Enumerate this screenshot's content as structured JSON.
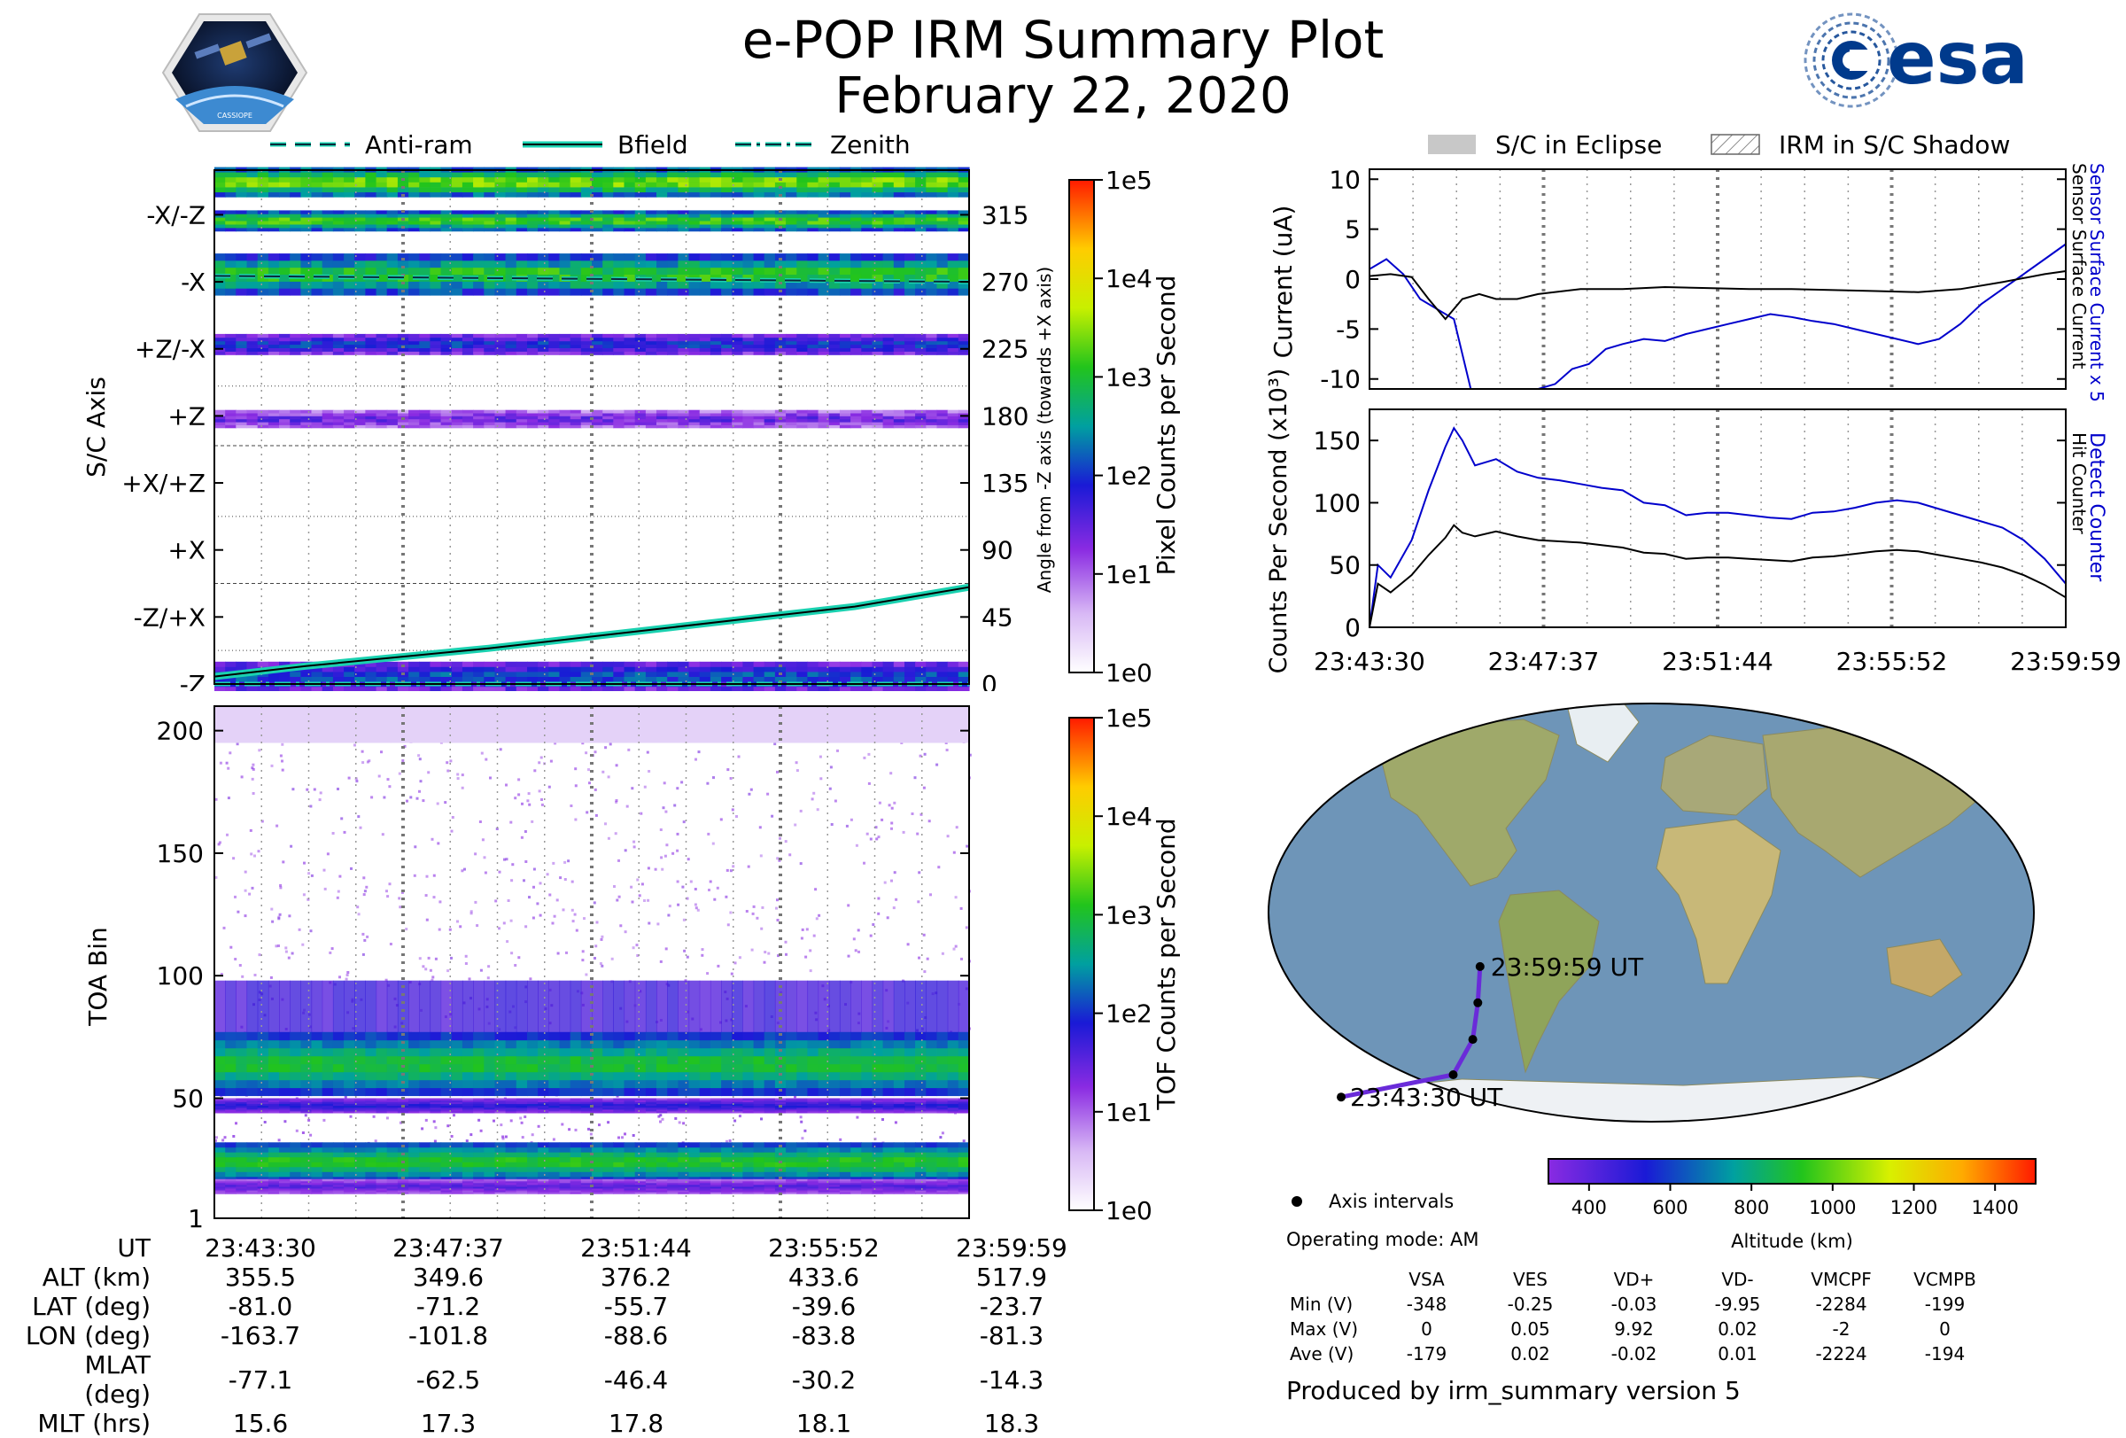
{
  "header": {
    "title": "e-POP IRM Summary Plot",
    "date": "February 22, 2020",
    "mission_logo_text": "CASSIOPE",
    "agency_logo_text": "esa"
  },
  "colors": {
    "sensor_blue": "#0000cc",
    "orbit_track": "#6a2bd9",
    "bfield_teal": "#1ad1b0",
    "eclipse_gray": "#c8c8c8"
  },
  "chart_data": [
    {
      "id": "pixel_spectrogram",
      "type": "heatmap",
      "ylabel": "S/C Axis",
      "y_ticks_left": [
        "-X/-Z",
        "-X",
        "+Z/-X",
        "+Z",
        "+X/+Z",
        "+X",
        "-Z/+X",
        "-Z"
      ],
      "y_ticks_right": [
        "315",
        "270",
        "225",
        "180",
        "135",
        "90",
        "45",
        "0"
      ],
      "right_axis_label": "Angle from -Z axis (towards +X axis)",
      "ylim": [
        0,
        345
      ],
      "legend": [
        "Anti-ram",
        "Bfield",
        "Zenith"
      ],
      "colorbar_label": "Pixel Counts per Second",
      "colorbar_ticks": [
        "1e5",
        "1e4",
        "1e3",
        "1e2",
        "1e1",
        "1e0"
      ],
      "bands": [
        {
          "center": 337,
          "half_width": 10,
          "intensity": 0.72
        },
        {
          "center": 311,
          "half_width": 7,
          "intensity": 0.68
        },
        {
          "center": 275,
          "half_width": 14,
          "intensity": 0.65
        },
        {
          "center": 228,
          "half_width": 7,
          "intensity": 0.42
        },
        {
          "center": 178,
          "half_width": 6,
          "intensity": 0.3
        },
        {
          "center": 5,
          "half_width": 10,
          "intensity": 0.45
        }
      ],
      "anti_ram": {
        "t": [
          0,
          16.5
        ],
        "angle": [
          274,
          270
        ]
      },
      "zenith": {
        "t": [
          0,
          16.5
        ],
        "angle": [
          0,
          0
        ]
      },
      "bfield": {
        "t": [
          0,
          2,
          4,
          6,
          8,
          10,
          12,
          14,
          16.5
        ],
        "angle": [
          5,
          12,
          18,
          24,
          31,
          38,
          45,
          52,
          65
        ]
      }
    },
    {
      "id": "toa_spectrogram",
      "type": "heatmap",
      "ylabel": "TOA Bin",
      "y_ticks": [
        1,
        50,
        100,
        150,
        200
      ],
      "ylim": [
        1,
        210
      ],
      "colorbar_label": "TOF Counts per Second",
      "colorbar_ticks": [
        "1e5",
        "1e4",
        "1e3",
        "1e2",
        "1e1",
        "1e0"
      ],
      "bands": [
        {
          "center": 64,
          "half_width": 13,
          "intensity": 0.62
        },
        {
          "center": 47,
          "half_width": 3,
          "intensity": 0.38
        },
        {
          "center": 24,
          "half_width": 8,
          "intensity": 0.64
        },
        {
          "center": 14,
          "half_width": 3,
          "intensity": 0.32
        }
      ],
      "diffuse_top": 98
    },
    {
      "id": "sensor_current",
      "type": "line",
      "ylabel": "Current (uA)",
      "y_ticks": [
        10,
        5,
        0,
        -5,
        -10
      ],
      "ylim": [
        -11,
        11
      ],
      "legend": [
        "S/C in Eclipse",
        "IRM in S/C Shadow"
      ],
      "right_labels": [
        "Sensor Surface Current x 5",
        "Sensor Surface Current"
      ],
      "series": [
        {
          "name": "Sensor Surface Current x 5",
          "t": [
            0,
            0.4,
            0.8,
            1.2,
            1.6,
            2.0,
            2.4,
            2.8,
            3.2,
            3.6,
            4.0,
            4.4,
            4.8,
            5.2,
            5.6,
            6.0,
            6.5,
            7.0,
            7.5,
            8.0,
            8.5,
            9.0,
            9.5,
            10.0,
            10.5,
            11.0,
            11.5,
            12.0,
            12.5,
            13.0,
            13.5,
            14.0,
            14.5,
            15.0,
            15.5,
            16.0,
            16.5
          ],
          "values": [
            1.0,
            2.0,
            0.5,
            -2.0,
            -3.0,
            -4.0,
            -11.5,
            -11.5,
            -11.5,
            -11.0,
            -11.5,
            -10.5,
            -9.0,
            -8.5,
            -7.0,
            -6.5,
            -6.0,
            -6.2,
            -5.5,
            -5.0,
            -4.5,
            -4.0,
            -3.5,
            -3.8,
            -4.2,
            -4.5,
            -5.0,
            -5.5,
            -6.0,
            -6.5,
            -6.0,
            -4.5,
            -2.5,
            -1.0,
            0.5,
            2.0,
            3.5
          ]
        },
        {
          "name": "Sensor Surface Current",
          "t": [
            0,
            0.5,
            1.0,
            1.4,
            1.8,
            2.2,
            2.6,
            3.0,
            3.5,
            4.0,
            5.0,
            6.0,
            7.0,
            8.0,
            9.0,
            10.0,
            11.0,
            12.0,
            13.0,
            14.0,
            15.0,
            16.0,
            16.5
          ],
          "values": [
            0.3,
            0.5,
            0.2,
            -2.0,
            -4.0,
            -2.0,
            -1.5,
            -2.0,
            -2.0,
            -1.5,
            -1.0,
            -1.0,
            -0.8,
            -0.9,
            -1.0,
            -1.0,
            -1.1,
            -1.2,
            -1.3,
            -1.0,
            -0.3,
            0.5,
            0.8
          ]
        }
      ]
    },
    {
      "id": "counts_per_second",
      "type": "line",
      "ylabel": "Counts Per Second (x10³)",
      "y_ticks": [
        150,
        100,
        50,
        0
      ],
      "ylim": [
        0,
        175
      ],
      "right_labels": [
        "Detect Counter",
        "Hit Counter"
      ],
      "x_tick_labels": [
        "23:43:30",
        "23:47:37",
        "23:51:44",
        "23:55:52",
        "23:59:59"
      ],
      "series": [
        {
          "name": "Detect Counter",
          "t": [
            0,
            0.2,
            0.5,
            1.0,
            1.4,
            1.8,
            2.0,
            2.2,
            2.5,
            3.0,
            3.5,
            4.0,
            4.5,
            5.0,
            5.5,
            6.0,
            6.5,
            7.0,
            7.5,
            8.0,
            8.5,
            9.0,
            9.5,
            10.0,
            10.5,
            11.0,
            11.5,
            12.0,
            12.5,
            13.0,
            13.5,
            14.0,
            14.5,
            15.0,
            15.5,
            16.0,
            16.5
          ],
          "values": [
            0,
            50,
            40,
            70,
            110,
            145,
            160,
            150,
            130,
            135,
            125,
            120,
            118,
            115,
            112,
            110,
            100,
            98,
            90,
            92,
            92,
            90,
            88,
            87,
            92,
            93,
            96,
            100,
            102,
            100,
            95,
            90,
            85,
            80,
            70,
            55,
            35
          ]
        },
        {
          "name": "Hit Counter",
          "t": [
            0,
            0.2,
            0.5,
            1.0,
            1.4,
            1.8,
            2.0,
            2.2,
            2.5,
            3.0,
            3.5,
            4.0,
            4.5,
            5.0,
            5.5,
            6.0,
            6.5,
            7.0,
            7.5,
            8.0,
            8.5,
            9.0,
            9.5,
            10.0,
            10.5,
            11.0,
            11.5,
            12.0,
            12.5,
            13.0,
            13.5,
            14.0,
            14.5,
            15.0,
            15.5,
            16.0,
            16.5
          ],
          "values": [
            0,
            35,
            28,
            42,
            58,
            72,
            82,
            76,
            73,
            77,
            73,
            70,
            69,
            68,
            66,
            64,
            60,
            59,
            55,
            56,
            56,
            55,
            54,
            53,
            56,
            57,
            59,
            61,
            62,
            61,
            58,
            55,
            52,
            48,
            42,
            34,
            24
          ]
        }
      ]
    }
  ],
  "time_axis": {
    "label": "UT",
    "ticks": [
      "23:43:30",
      "23:47:37",
      "23:51:44",
      "23:55:52",
      "23:59:59"
    ]
  },
  "ephemeris": {
    "rows": [
      {
        "label": "ALT (km)",
        "values": [
          "355.5",
          "349.6",
          "376.2",
          "433.6",
          "517.9"
        ]
      },
      {
        "label": "LAT (deg)",
        "values": [
          "-81.0",
          "-71.2",
          "-55.7",
          "-39.6",
          "-23.7"
        ]
      },
      {
        "label": "LON (deg)",
        "values": [
          "-163.7",
          "-101.8",
          "-88.6",
          "-83.8",
          "-81.3"
        ]
      },
      {
        "label": "MLAT (deg)",
        "values": [
          "-77.1",
          "-62.5",
          "-46.4",
          "-30.2",
          "-14.3"
        ]
      },
      {
        "label": "MLT (hrs)",
        "values": [
          "15.6",
          "17.3",
          "17.8",
          "18.1",
          "18.3"
        ]
      }
    ]
  },
  "map": {
    "start_label": "23:43:30 UT",
    "end_label": "23:59:59 UT",
    "track": {
      "lon": [
        -163.7,
        -101.8,
        -88.6,
        -83.8,
        -81.3
      ],
      "lat": [
        -81.0,
        -71.2,
        -55.7,
        -39.6,
        -23.7
      ]
    },
    "legend_marker": "Axis intervals",
    "colorbar_label": "Altitude (km)",
    "colorbar_ticks": [
      "400",
      "600",
      "800",
      "1000",
      "1200",
      "1400"
    ],
    "colorbar_range": [
      300,
      1500
    ]
  },
  "operating_mode": "Operating mode: AM",
  "voltage_table": {
    "columns": [
      "VSA",
      "VES",
      "VD+",
      "VD-",
      "VMCPF",
      "VCMPB"
    ],
    "rows": [
      {
        "label": "Min (V)",
        "values": [
          "-348",
          "-0.25",
          "-0.03",
          "-9.95",
          "-2284",
          "-199"
        ]
      },
      {
        "label": "Max (V)",
        "values": [
          "0",
          "0.05",
          "9.92",
          "0.02",
          "-2",
          "0"
        ]
      },
      {
        "label": "Ave (V)",
        "values": [
          "-179",
          "0.02",
          "-0.02",
          "0.01",
          "-2224",
          "-194"
        ]
      }
    ]
  },
  "footer": "Produced by irm_summary version 5"
}
